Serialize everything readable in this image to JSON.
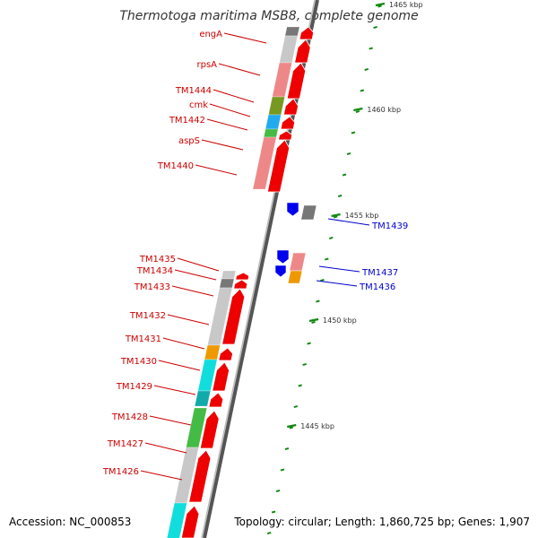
{
  "title": "Thermotoga maritima MSB8, complete genome",
  "footer": {
    "accession": "Accession: NC_000853",
    "summary": "Topology: circular; Length: 1,860,725 bp; Genes: 1,907"
  },
  "colors": {
    "label_red": "#cc0000",
    "label_blue": "#0000cc",
    "tick_green": "#118811",
    "strand_red": "#ee0000",
    "strand_blue": "#0000ee"
  },
  "ticks": [
    {
      "label": "1465 kbp"
    },
    {
      "label": "1460 kbp"
    },
    {
      "label": "1455 kbp"
    },
    {
      "label": "1450 kbp"
    },
    {
      "label": "1445 kbp"
    }
  ],
  "genes": [
    {
      "name": "engA",
      "strand": "forward"
    },
    {
      "name": "rpsA",
      "strand": "forward"
    },
    {
      "name": "TM1444",
      "strand": "forward"
    },
    {
      "name": "cmk",
      "strand": "forward"
    },
    {
      "name": "TM1442",
      "strand": "forward"
    },
    {
      "name": "aspS",
      "strand": "forward"
    },
    {
      "name": "TM1440",
      "strand": "forward"
    },
    {
      "name": "TM1439",
      "strand": "reverse"
    },
    {
      "name": "TM1437",
      "strand": "reverse"
    },
    {
      "name": "TM1436",
      "strand": "reverse"
    },
    {
      "name": "TM1435",
      "strand": "forward"
    },
    {
      "name": "TM1434",
      "strand": "forward"
    },
    {
      "name": "TM1433",
      "strand": "forward"
    },
    {
      "name": "TM1432",
      "strand": "forward"
    },
    {
      "name": "TM1431",
      "strand": "forward"
    },
    {
      "name": "TM1430",
      "strand": "forward"
    },
    {
      "name": "TM1429",
      "strand": "forward"
    },
    {
      "name": "TM1428",
      "strand": "forward"
    },
    {
      "name": "TM1427",
      "strand": "forward"
    },
    {
      "name": "TM1426",
      "strand": "forward"
    }
  ]
}
